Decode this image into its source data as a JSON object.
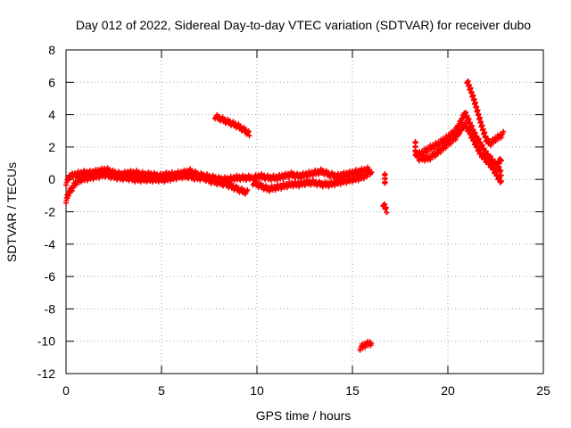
{
  "chart_data": {
    "type": "scatter",
    "title": "Day 012 of 2022, Sidereal Day-to-day VTEC variation (SDTVAR) for receiver dubo",
    "xlabel": "GPS time / hours",
    "ylabel": "SDTVAR / TECUs",
    "xlim": [
      0,
      25
    ],
    "ylim": [
      -12,
      8
    ],
    "x_ticks": [
      0,
      5,
      10,
      15,
      20,
      25
    ],
    "x_tick_labels": [
      "0",
      "5",
      "10",
      "15",
      "20",
      "25"
    ],
    "y_ticks": [
      -12,
      -10,
      -8,
      -6,
      -4,
      -2,
      0,
      2,
      4,
      6,
      8
    ],
    "y_tick_labels": [
      "-12",
      "-10",
      "-8",
      "-6",
      "-4",
      "-2",
      "0",
      "2",
      "4",
      "6",
      "8"
    ],
    "grid": true,
    "marker": "plus",
    "marker_color": "#ff0000",
    "series": [
      {
        "segments": [
          [
            [
              0.0,
              -1.3
            ],
            [
              0.15,
              -0.8
            ],
            [
              0.3,
              -0.6
            ],
            [
              0.5,
              -0.2
            ],
            [
              0.8,
              0.0
            ],
            [
              1.2,
              0.1
            ],
            [
              1.6,
              0.2
            ],
            [
              2.0,
              0.3
            ],
            [
              2.4,
              0.2
            ],
            [
              2.8,
              0.1
            ],
            [
              3.2,
              0.1
            ],
            [
              3.6,
              0.0
            ],
            [
              4.0,
              0.0
            ],
            [
              4.4,
              0.0
            ],
            [
              4.8,
              0.0
            ],
            [
              5.2,
              0.0
            ],
            [
              5.6,
              0.1
            ],
            [
              6.0,
              0.2
            ],
            [
              6.4,
              0.2
            ],
            [
              6.8,
              0.1
            ],
            [
              7.2,
              0.1
            ],
            [
              7.6,
              -0.1
            ],
            [
              8.0,
              -0.2
            ],
            [
              8.4,
              -0.3
            ],
            [
              8.8,
              -0.5
            ],
            [
              9.2,
              -0.7
            ],
            [
              9.5,
              -0.8
            ]
          ],
          [
            [
              0.0,
              -0.2
            ],
            [
              0.2,
              0.2
            ],
            [
              0.5,
              0.3
            ],
            [
              0.9,
              0.4
            ],
            [
              1.3,
              0.4
            ],
            [
              1.7,
              0.5
            ],
            [
              2.1,
              0.6
            ],
            [
              2.5,
              0.4
            ],
            [
              2.9,
              0.3
            ],
            [
              3.3,
              0.4
            ],
            [
              3.7,
              0.4
            ],
            [
              4.1,
              0.3
            ],
            [
              4.5,
              0.3
            ],
            [
              4.9,
              0.2
            ],
            [
              5.3,
              0.3
            ],
            [
              5.7,
              0.3
            ],
            [
              6.1,
              0.4
            ],
            [
              6.5,
              0.5
            ],
            [
              6.9,
              0.3
            ],
            [
              7.3,
              0.2
            ],
            [
              7.7,
              0.1
            ],
            [
              8.1,
              0.0
            ],
            [
              8.5,
              0.0
            ],
            [
              8.9,
              0.1
            ],
            [
              9.3,
              0.1
            ],
            [
              9.7,
              0.1
            ]
          ],
          [
            [
              9.8,
              -0.2
            ],
            [
              10.2,
              -0.4
            ],
            [
              10.6,
              -0.6
            ],
            [
              11.0,
              -0.5
            ],
            [
              11.4,
              -0.4
            ],
            [
              11.8,
              -0.3
            ],
            [
              12.2,
              -0.3
            ],
            [
              12.6,
              -0.2
            ],
            [
              13.0,
              -0.2
            ],
            [
              13.4,
              -0.3
            ],
            [
              13.8,
              -0.3
            ],
            [
              14.2,
              -0.2
            ],
            [
              14.6,
              -0.1
            ],
            [
              15.0,
              0.0
            ],
            [
              15.4,
              0.1
            ],
            [
              15.8,
              0.3
            ]
          ],
          [
            [
              9.8,
              0.1
            ],
            [
              10.2,
              0.2
            ],
            [
              10.6,
              0.1
            ],
            [
              11.0,
              0.1
            ],
            [
              11.4,
              0.2
            ],
            [
              11.8,
              0.3
            ],
            [
              12.2,
              0.2
            ],
            [
              12.6,
              0.3
            ],
            [
              13.0,
              0.4
            ],
            [
              13.4,
              0.5
            ],
            [
              13.8,
              0.3
            ],
            [
              14.2,
              0.2
            ],
            [
              14.6,
              0.3
            ],
            [
              15.0,
              0.4
            ],
            [
              15.4,
              0.5
            ],
            [
              15.8,
              0.6
            ],
            [
              16.0,
              0.4
            ]
          ],
          [
            [
              7.8,
              3.9
            ],
            [
              8.2,
              3.7
            ],
            [
              8.6,
              3.5
            ],
            [
              9.0,
              3.3
            ],
            [
              9.4,
              3.0
            ],
            [
              9.6,
              2.8
            ]
          ],
          [
            [
              16.7,
              0.4
            ],
            [
              16.7,
              -0.3
            ]
          ],
          [
            [
              16.6,
              -1.5
            ],
            [
              16.8,
              -1.9
            ]
          ],
          [
            [
              15.4,
              -10.4
            ],
            [
              15.7,
              -10.2
            ],
            [
              16.0,
              -10.1
            ]
          ],
          [
            [
              18.3,
              2.4
            ],
            [
              18.3,
              1.5
            ],
            [
              18.6,
              1.6
            ],
            [
              19.0,
              1.9
            ],
            [
              19.5,
              2.2
            ],
            [
              20.0,
              2.6
            ],
            [
              20.4,
              3.0
            ],
            [
              20.7,
              3.6
            ],
            [
              20.9,
              4.1
            ],
            [
              21.1,
              3.6
            ],
            [
              21.4,
              2.8
            ],
            [
              21.7,
              2.2
            ],
            [
              22.0,
              1.6
            ],
            [
              22.3,
              1.2
            ],
            [
              22.6,
              0.8
            ],
            [
              22.8,
              0.4
            ]
          ],
          [
            [
              18.5,
              1.3
            ],
            [
              19.0,
              1.3
            ],
            [
              19.5,
              1.7
            ],
            [
              20.0,
              2.2
            ],
            [
              20.4,
              2.6
            ],
            [
              20.7,
              3.1
            ],
            [
              20.9,
              3.4
            ],
            [
              21.1,
              3.0
            ],
            [
              21.4,
              2.3
            ],
            [
              21.7,
              1.6
            ],
            [
              22.0,
              1.2
            ],
            [
              22.3,
              0.8
            ],
            [
              22.6,
              0.2
            ],
            [
              22.8,
              -0.2
            ]
          ],
          [
            [
              21.0,
              6.1
            ],
            [
              21.2,
              5.5
            ],
            [
              21.4,
              4.8
            ],
            [
              21.6,
              4.0
            ],
            [
              21.8,
              3.2
            ],
            [
              22.0,
              2.5
            ],
            [
              22.2,
              2.2
            ],
            [
              22.5,
              2.5
            ],
            [
              22.9,
              2.8
            ]
          ],
          [
            [
              22.8,
              1.3
            ],
            [
              22.6,
              0.9
            ]
          ]
        ]
      }
    ]
  }
}
